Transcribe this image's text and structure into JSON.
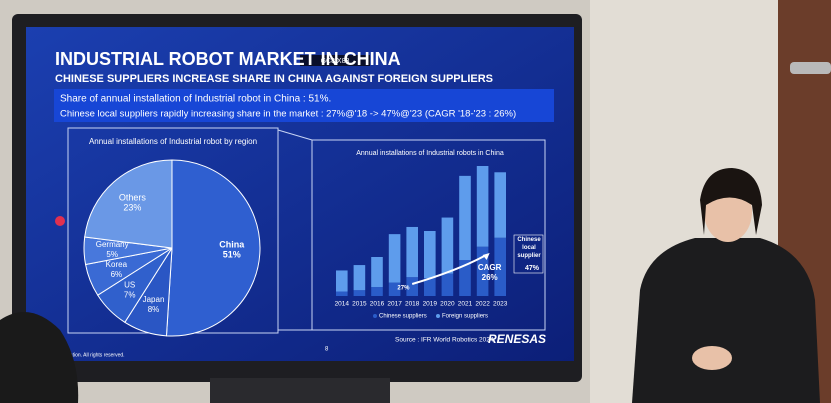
{
  "slide": {
    "camera_label": "GC8 X83",
    "title": "INDUSTRIAL ROBOT MARKET IN CHINA",
    "subtitle": "CHINESE SUPPLIERS INCREASE SHARE IN CHINA AGAINST FOREIGN SUPPLIERS",
    "bullets": [
      "Share of annual installation of Industrial robot in China : 51%.",
      "Chinese local suppliers rapidly increasing share in the market : 27%@'18 -> 47%@'23 (CAGR '18-'23 : 26%)"
    ],
    "source": "Source : IFR World Robotics 2024",
    "logo": "RENESAS",
    "page_number": "8",
    "footer": "lectronics Corporation. All rights reserved."
  },
  "chart_data": [
    {
      "type": "pie",
      "title": "Annual installations of Industrial robot by region",
      "categories": [
        "China",
        "Japan",
        "US",
        "Korea",
        "Germany",
        "Others"
      ],
      "values": [
        51,
        8,
        7,
        6,
        5,
        23
      ],
      "value_labels": [
        "51%",
        "8%",
        "7%",
        "6%",
        "5%",
        "23%"
      ],
      "colors": [
        "#2f5fd0",
        "#2a56c4",
        "#3060cc",
        "#3a6ad4",
        "#4878dc",
        "#6a98e6"
      ]
    },
    {
      "type": "stacked-bar",
      "title": "Annual installations of Industrial robots in China",
      "categories": [
        "2014",
        "2015",
        "2016",
        "2017",
        "2018",
        "2019",
        "2020",
        "2021",
        "2022",
        "2023"
      ],
      "series": [
        {
          "name": "Chinese suppliers",
          "color": "#2a5cc8",
          "values": [
            10,
            13,
            20,
            30,
            42,
            40,
            50,
            80,
            110,
            130
          ]
        },
        {
          "name": "Foreign suppliers",
          "color": "#5e9cec",
          "values": [
            47,
            56,
            67,
            108,
            112,
            105,
            125,
            188,
            180,
            146
          ]
        }
      ],
      "annotations": {
        "start_share": "27%",
        "cagr_label": "CAGR",
        "cagr_value": "26%",
        "end_label": "Chinese local supplier",
        "end_value": "47%"
      }
    }
  ]
}
